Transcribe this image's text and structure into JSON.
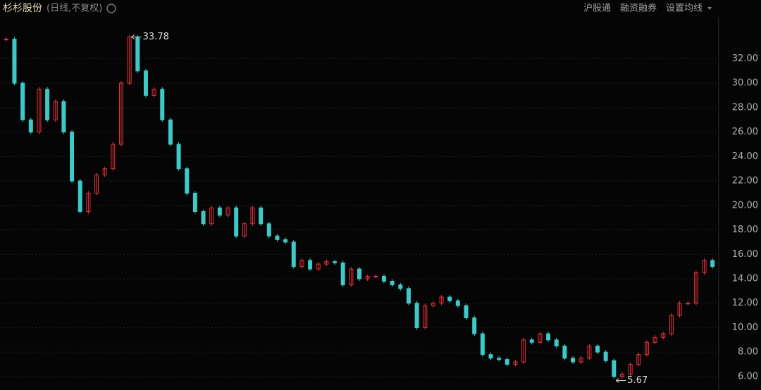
{
  "header": {
    "title": "杉杉股份",
    "subtitle": "(日线,不复权)",
    "menu": [
      "沪股通",
      "融资融券",
      "设置均线"
    ]
  },
  "chart_data": {
    "type": "candlestick",
    "series": [
      {
        "name": "杉杉股份",
        "up_color": "#e8323c",
        "down_color": "#3ec8c8",
        "values": [
          33.6,
          30,
          27,
          26,
          29.5,
          27,
          28.5,
          26,
          22,
          19.5,
          21,
          22.5,
          23,
          25,
          30,
          33.78,
          31,
          29,
          29.5,
          27,
          25,
          23,
          21,
          19.5,
          18.5,
          19.8,
          19.2,
          19.8,
          17.5,
          18.5,
          19.8,
          18.5,
          17.5,
          17.2,
          17,
          15,
          15.5,
          14.8,
          15.2,
          15.4,
          15.3,
          13.5,
          14.8,
          14,
          14.2,
          14.2,
          13.8,
          13.5,
          13.2,
          12,
          10,
          11.8,
          12,
          12.5,
          12.2,
          11.8,
          10.8,
          9.5,
          7.8,
          7.5,
          7.4,
          7,
          7.2,
          9,
          8.8,
          9.5,
          9,
          8.5,
          7.5,
          7.2,
          7.5,
          8.5,
          8,
          7.3,
          6,
          6.2,
          7,
          7.8,
          8.8,
          9.2,
          9.5,
          11,
          12,
          12,
          14.5,
          15.5,
          15
        ]
      }
    ],
    "annotations": {
      "high": 33.78,
      "low": 5.67
    },
    "ylim": [
      4.9,
      34.5
    ],
    "yticks": [
      {
        "value": 6,
        "label": "6.00"
      },
      {
        "value": 8,
        "label": "8.00"
      },
      {
        "value": 10,
        "label": "10.00"
      },
      {
        "value": 12,
        "label": "12.00"
      },
      {
        "value": 14,
        "label": "14.00"
      },
      {
        "value": 16,
        "label": "16.00"
      },
      {
        "value": 18,
        "label": "18.00"
      },
      {
        "value": 20,
        "label": "20.00"
      },
      {
        "value": 22,
        "label": "22.00"
      },
      {
        "value": 24,
        "label": "24.00"
      },
      {
        "value": 26,
        "label": "26.00"
      },
      {
        "value": 28,
        "label": "28.00"
      },
      {
        "value": 30,
        "label": "30.00"
      },
      {
        "value": 32,
        "label": "32.00"
      }
    ],
    "grid": true
  }
}
